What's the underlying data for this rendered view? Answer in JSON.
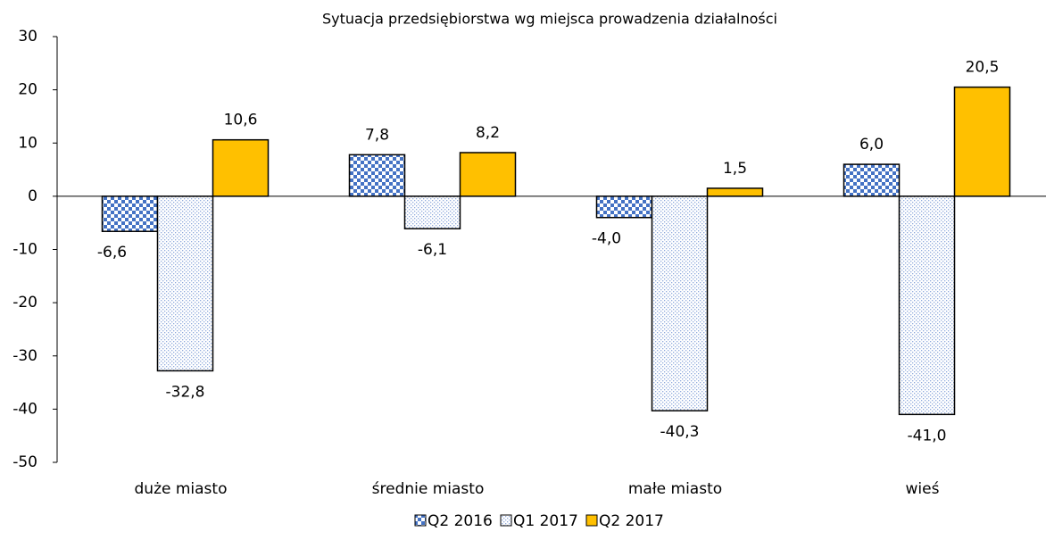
{
  "chart_data": {
    "type": "bar",
    "title": "Sytuacja przedsiębiorstwa wg miejsca prowadzenia działalności",
    "categories": [
      "duże miasto",
      "średnie miasto",
      "małe miasto",
      "wieś"
    ],
    "series": [
      {
        "name": "Q2 2016",
        "color": "#4472c4",
        "pattern": "checker",
        "values": [
          -6.6,
          7.8,
          -4.0,
          6.0
        ],
        "value_labels": [
          "-6,6",
          "7,8",
          "-4,0",
          "6,0"
        ]
      },
      {
        "name": "Q1 2017",
        "color": "#8faadc",
        "pattern": "dots",
        "values": [
          -32.8,
          -6.1,
          -40.3,
          -41.0
        ],
        "value_labels": [
          "-32,8",
          "-6,1",
          "-40,3",
          "-41,0"
        ]
      },
      {
        "name": "Q2 2017",
        "color": "#ffc000",
        "pattern": "solid",
        "values": [
          10.6,
          8.2,
          1.5,
          20.5
        ],
        "value_labels": [
          "10,6",
          "8,2",
          "1,5",
          "20,5"
        ]
      }
    ],
    "ylim": [
      -50,
      30
    ],
    "yticks": [
      -50,
      -40,
      -30,
      -20,
      -10,
      0,
      10,
      20,
      30
    ],
    "legend": "bottom"
  }
}
